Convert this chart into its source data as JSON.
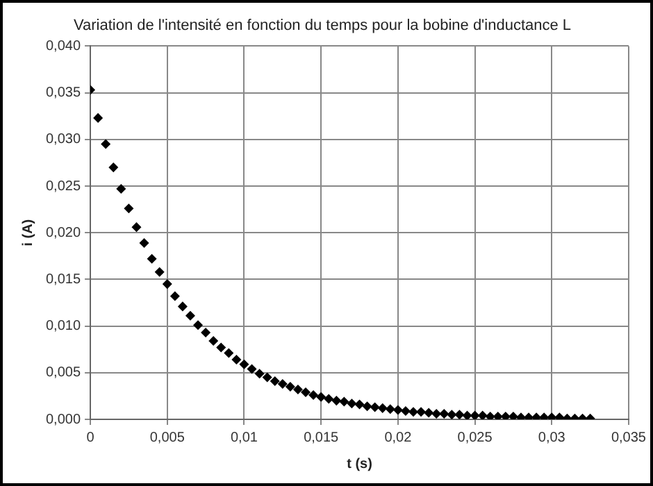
{
  "chart_data": {
    "type": "scatter",
    "title": "Variation de l'intensité en fonction du temps pour la bobine d'inductance L",
    "xlabel": "t (s)",
    "ylabel": "i (A)",
    "x": [
      0,
      0.0005,
      0.001,
      0.0015,
      0.002,
      0.0025,
      0.003,
      0.0035,
      0.004,
      0.0045,
      0.005,
      0.0055,
      0.006,
      0.0065,
      0.007,
      0.0075,
      0.008,
      0.0085,
      0.009,
      0.0095,
      0.01,
      0.0105,
      0.011,
      0.0115,
      0.012,
      0.0125,
      0.013,
      0.0135,
      0.014,
      0.0145,
      0.015,
      0.0155,
      0.016,
      0.0165,
      0.017,
      0.0175,
      0.018,
      0.0185,
      0.019,
      0.0195,
      0.02,
      0.0205,
      0.021,
      0.0215,
      0.022,
      0.0225,
      0.023,
      0.0235,
      0.024,
      0.0245,
      0.025,
      0.0255,
      0.026,
      0.0265,
      0.027,
      0.0275,
      0.028,
      0.0285,
      0.029,
      0.0295,
      0.03,
      0.0305,
      0.031,
      0.0315,
      0.032,
      0.0325
    ],
    "series": [
      {
        "color": "#000000",
        "values": [
          0.0353,
          0.0323,
          0.0295,
          0.027,
          0.0247,
          0.0226,
          0.0206,
          0.0189,
          0.0172,
          0.0158,
          0.0145,
          0.0132,
          0.0121,
          0.0111,
          0.0101,
          0.0093,
          0.0084,
          0.0077,
          0.0071,
          0.0064,
          0.0059,
          0.0054,
          0.0049,
          0.0045,
          0.0041,
          0.0038,
          0.0035,
          0.0032,
          0.0029,
          0.0026,
          0.0024,
          0.0022,
          0.002,
          0.0019,
          0.0017,
          0.0016,
          0.0014,
          0.0013,
          0.0012,
          0.0011,
          0.001,
          0.0009,
          0.0008,
          0.0008,
          0.0007,
          0.0006,
          0.0006,
          0.0005,
          0.0005,
          0.0004,
          0.0004,
          0.0004,
          0.0003,
          0.0003,
          0.0003,
          0.0003,
          0.0002,
          0.0002,
          0.0002,
          0.0002,
          0.0002,
          0.0002,
          0.0001,
          0.0001,
          0.0001,
          0.0001
        ]
      }
    ],
    "xlim": [
      0,
      0.035
    ],
    "xticks": [
      0,
      {
        "value": 0.005,
        "label": "0,005"
      },
      {
        "value": 0.01,
        "label": "0,01"
      },
      {
        "value": 0.015,
        "label": "0,015"
      },
      {
        "value": 0.02,
        "label": "0,02"
      },
      {
        "value": 0.025,
        "label": "0,025"
      },
      {
        "value": 0.03,
        "label": "0,03"
      },
      {
        "value": 0.035,
        "label": "0,035"
      }
    ],
    "ylim": [
      0,
      0.04
    ],
    "yticks": [
      {
        "value": 0,
        "label": "0,000"
      },
      {
        "value": 0.005,
        "label": "0,005"
      },
      {
        "value": 0.01,
        "label": "0,010"
      },
      {
        "value": 0.015,
        "label": "0,015"
      },
      {
        "value": 0.02,
        "label": "0,020"
      },
      {
        "value": 0.025,
        "label": "0,025"
      },
      {
        "value": 0.03,
        "label": "0,030"
      },
      {
        "value": 0.035,
        "label": "0,035"
      },
      {
        "value": 0.04,
        "label": "0,040"
      }
    ],
    "grid": true,
    "marker": "diamond"
  }
}
